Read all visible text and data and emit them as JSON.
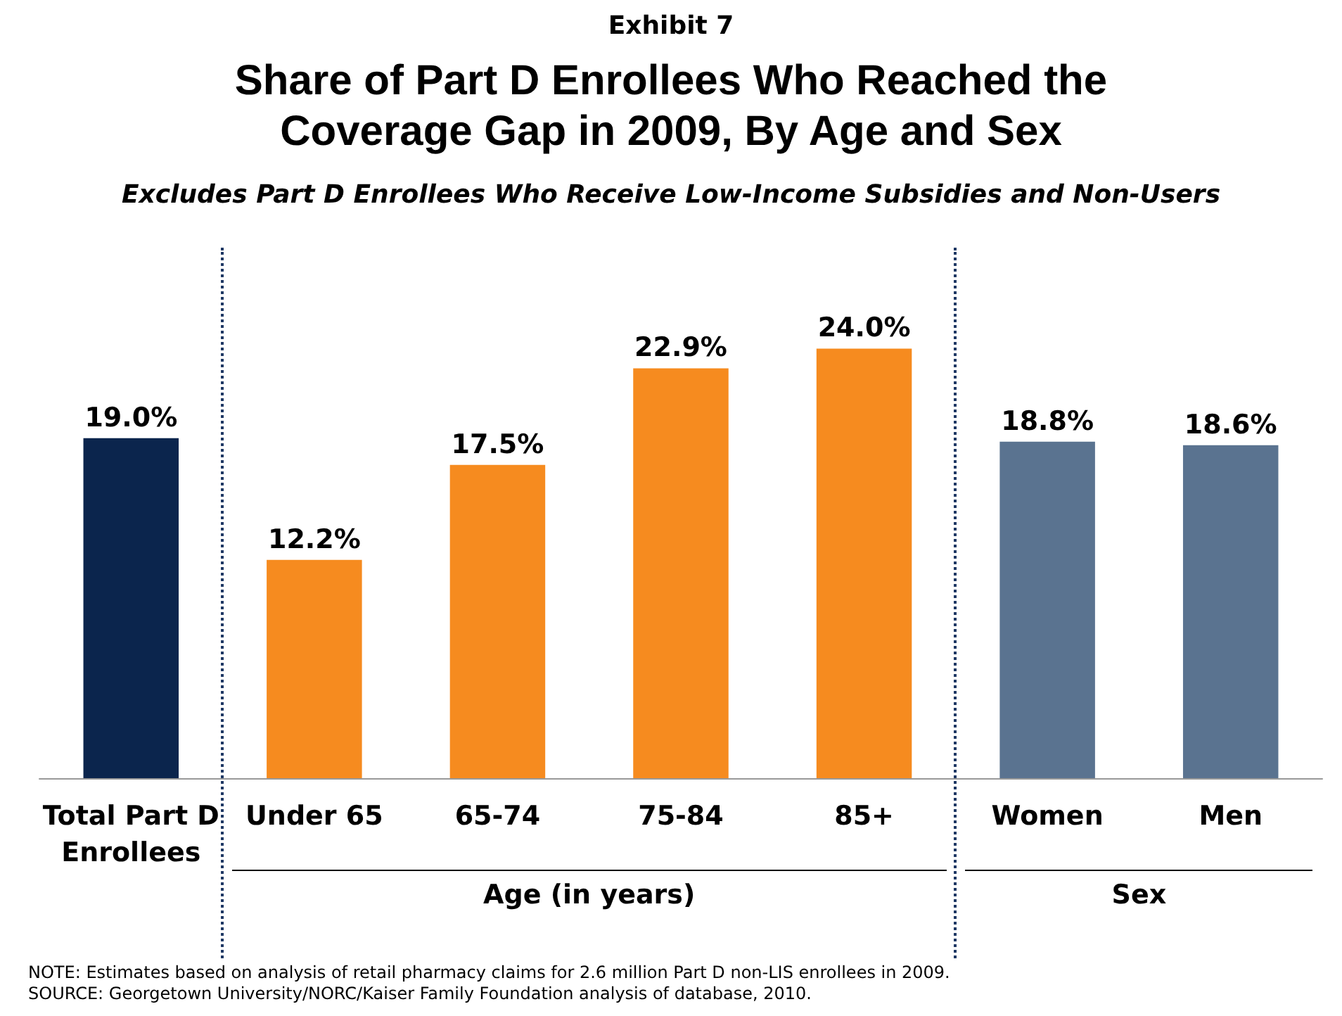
{
  "chart_data": {
    "type": "bar",
    "title": "Share of Part D Enrollees Who Reached the Coverage Gap in 2009, By Age and Sex",
    "subtitle": "Excludes Part D Enrollees Who Receive Low-Income Subsidies and Non-Users",
    "categories": [
      "Total Part D\nEnrollees",
      "Under 65",
      "65-74",
      "75-84",
      "85+",
      "Women",
      "Men"
    ],
    "values": [
      19.0,
      12.2,
      17.5,
      22.9,
      24.0,
      18.8,
      18.6
    ],
    "colors": [
      "#0b254d",
      "#f68b1f",
      "#f68b1f",
      "#f68b1f",
      "#f68b1f",
      "#5a7390",
      "#5a7390"
    ],
    "value_labels": [
      "19.0%",
      "12.2%",
      "17.5%",
      "22.9%",
      "24.0%",
      "18.8%",
      "18.6%"
    ],
    "annotations": [
      "Exhibit 7",
      "Age (in years)",
      "Sex",
      "NOTE:  Estimates based on analysis of retail pharmacy claims for 2.6 million Part D non-LIS enrollees in 2009.",
      "SOURCE:  Georgetown University/NORC/Kaiser Family Foundation analysis of database, 2010."
    ]
  }
}
